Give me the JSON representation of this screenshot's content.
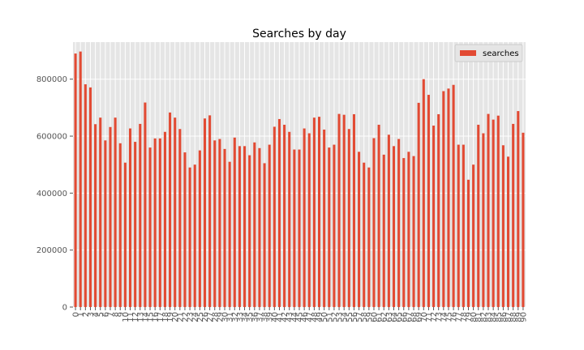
{
  "chart_data": {
    "type": "bar",
    "title": "Searches by day",
    "xlabel": "",
    "ylabel": "",
    "ylim": [
      0,
      930000
    ],
    "yticks": [
      0,
      200000,
      400000,
      600000,
      800000
    ],
    "ytick_labels": [
      "0",
      "200000",
      "400000",
      "600000",
      "800000"
    ],
    "grid": true,
    "legend_position": "top-right",
    "categories": [
      "0",
      "1",
      "2",
      "3",
      "4",
      "5",
      "6",
      "7",
      "8",
      "9",
      "10",
      "11",
      "12",
      "13",
      "14",
      "15",
      "16",
      "17",
      "18",
      "19",
      "20",
      "21",
      "22",
      "23",
      "24",
      "25",
      "26",
      "27",
      "28",
      "29",
      "30",
      "31",
      "32",
      "33",
      "34",
      "35",
      "36",
      "37",
      "38",
      "39",
      "40",
      "41",
      "42",
      "43",
      "44",
      "45",
      "46",
      "47",
      "48",
      "49",
      "50",
      "51",
      "52",
      "53",
      "54",
      "55",
      "56",
      "57",
      "58",
      "59",
      "60",
      "61",
      "62",
      "63",
      "64",
      "65",
      "66",
      "67",
      "68",
      "69",
      "70",
      "71",
      "72",
      "73",
      "74",
      "75",
      "76",
      "77",
      "78",
      "79",
      "80",
      "81",
      "82",
      "83",
      "84",
      "85",
      "86",
      "87",
      "88",
      "89",
      "90"
    ],
    "series": [
      {
        "name": "searches",
        "color": "#E24A33",
        "values": [
          890000,
          897000,
          782000,
          771000,
          642000,
          665000,
          585000,
          632000,
          665000,
          575000,
          507000,
          627000,
          580000,
          643000,
          718000,
          560000,
          592000,
          592000,
          615000,
          683000,
          665000,
          625000,
          543000,
          490000,
          500000,
          550000,
          662000,
          673000,
          585000,
          590000,
          555000,
          510000,
          595000,
          565000,
          565000,
          533000,
          578000,
          558000,
          505000,
          570000,
          633000,
          660000,
          640000,
          615000,
          553000,
          553000,
          627000,
          610000,
          665000,
          668000,
          623000,
          560000,
          570000,
          678000,
          675000,
          625000,
          677000,
          545000,
          507000,
          490000,
          593000,
          640000,
          535000,
          605000,
          565000,
          590000,
          523000,
          545000,
          530000,
          717000,
          800000,
          745000,
          637000,
          677000,
          758000,
          767000,
          780000,
          570000,
          570000,
          447000,
          500000,
          640000,
          610000,
          678000,
          658000,
          672000,
          568000,
          528000,
          643000,
          688000,
          612000
        ]
      }
    ]
  },
  "colors": {
    "plot_background": "#E5E5E5",
    "grid": "#FFFFFF",
    "bar": "#E24A33",
    "tick_text": "#555555",
    "legend_background": "#E5E5E5"
  }
}
